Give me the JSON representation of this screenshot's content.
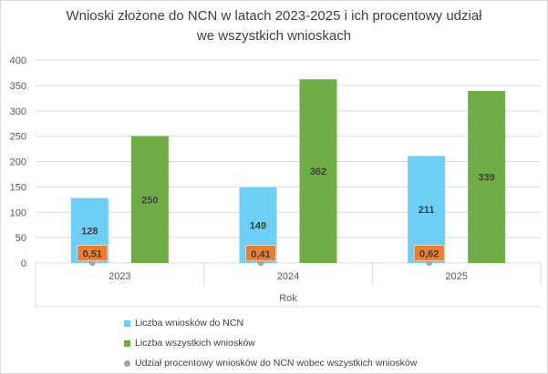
{
  "chart_data": {
    "type": "bar",
    "title_line1": "Wnioski złożone do NCN w latach 2023-2025 i ich procentowy udział",
    "title_line2": "we wszystkich wnioskach",
    "xlabel": "Rok",
    "ylabel": "",
    "categories": [
      "2023",
      "2024",
      "2025"
    ],
    "ylim": [
      0,
      400
    ],
    "yticks": [
      0,
      50,
      100,
      150,
      200,
      250,
      300,
      350,
      400
    ],
    "grid": true,
    "legend_position": "bottom",
    "series": [
      {
        "name": "Liczba wniosków do NCN",
        "type": "bar",
        "color": "#6dcff6",
        "values": [
          128,
          149,
          211
        ]
      },
      {
        "name": "Liczba wszystkich wniosków",
        "type": "bar",
        "color": "#70ad47",
        "values": [
          250,
          362,
          339
        ]
      },
      {
        "name": "Udział procentowy wniosków do NCN wobec wszystkich wniosków",
        "type": "scatter",
        "color": "#a5a5a5",
        "values": [
          0.51,
          0.41,
          0.62
        ],
        "labels": [
          "0,51",
          "0,41",
          "0,62"
        ],
        "label_bg": "#ed7d31"
      }
    ]
  }
}
